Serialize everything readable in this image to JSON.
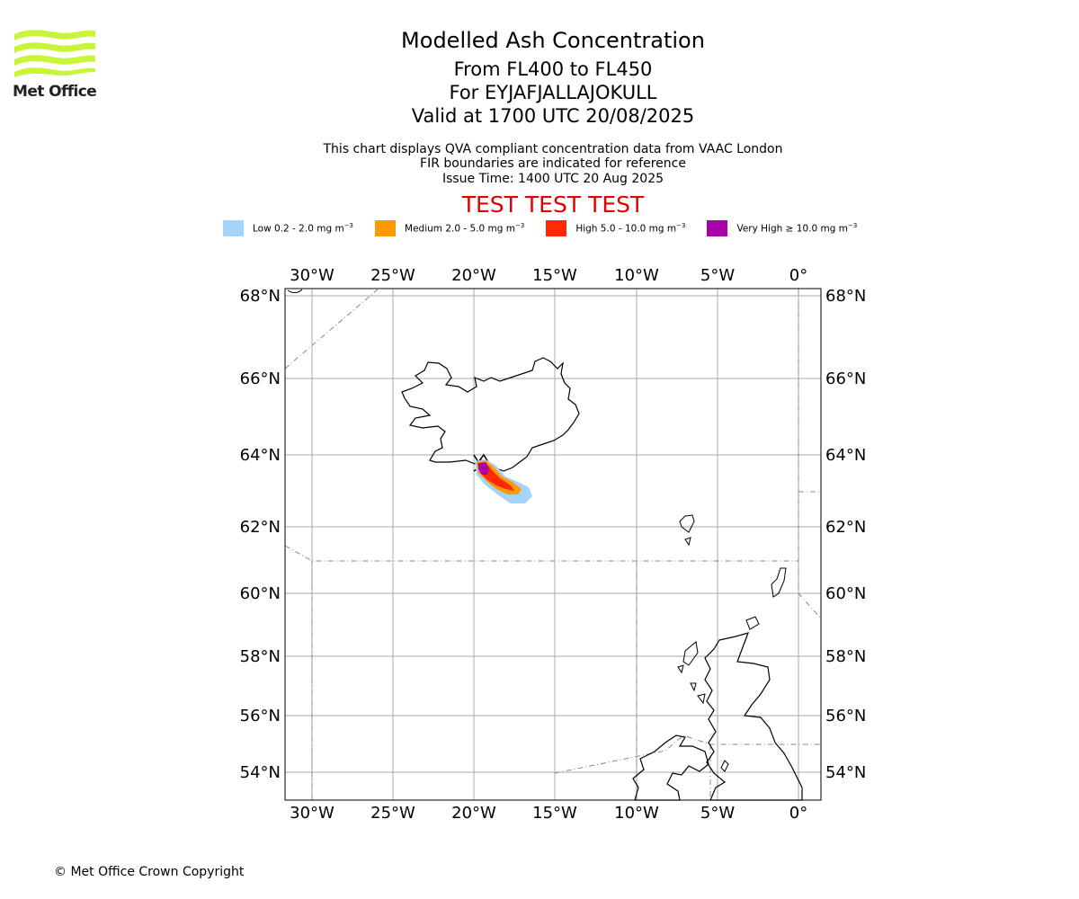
{
  "logo": {
    "text": "Met Office",
    "color": "#c8f53a"
  },
  "titles": {
    "main": "Modelled Ash Concentration",
    "levels": "From FL400 to FL450",
    "volcano": "For EYJAFJALLAJOKULL",
    "valid": "Valid at 1700 UTC 20/08/2025"
  },
  "subtitles": {
    "line1": "This chart displays QVA compliant concentration data from VAAC London",
    "line2": "FIR boundaries are indicated for reference",
    "line3": "Issue Time: 1400 UTC 20 Aug 2025"
  },
  "test_banner": "TEST TEST TEST",
  "legend": [
    {
      "label": "Low 0.2 - 2.0 mg m",
      "exp": "−3",
      "color": "#a4d3fb"
    },
    {
      "label": "Medium 2.0 - 5.0 mg m",
      "exp": "−3",
      "color": "#ff9900"
    },
    {
      "label": "High 5.0 - 10.0 mg m",
      "exp": "−3",
      "color": "#ff2a00"
    },
    {
      "label": "Very High ≥ 10.0 mg m",
      "exp": "−3",
      "color": "#aa00aa"
    }
  ],
  "map": {
    "lon_ticks": [
      "30°W",
      "25°W",
      "20°W",
      "15°W",
      "10°W",
      "5°W",
      "0°"
    ],
    "lat_ticks": [
      "68°N",
      "66°N",
      "64°N",
      "62°N",
      "60°N",
      "58°N",
      "56°N",
      "54°N"
    ]
  },
  "copyright": "© Met Office Crown Copyright"
}
